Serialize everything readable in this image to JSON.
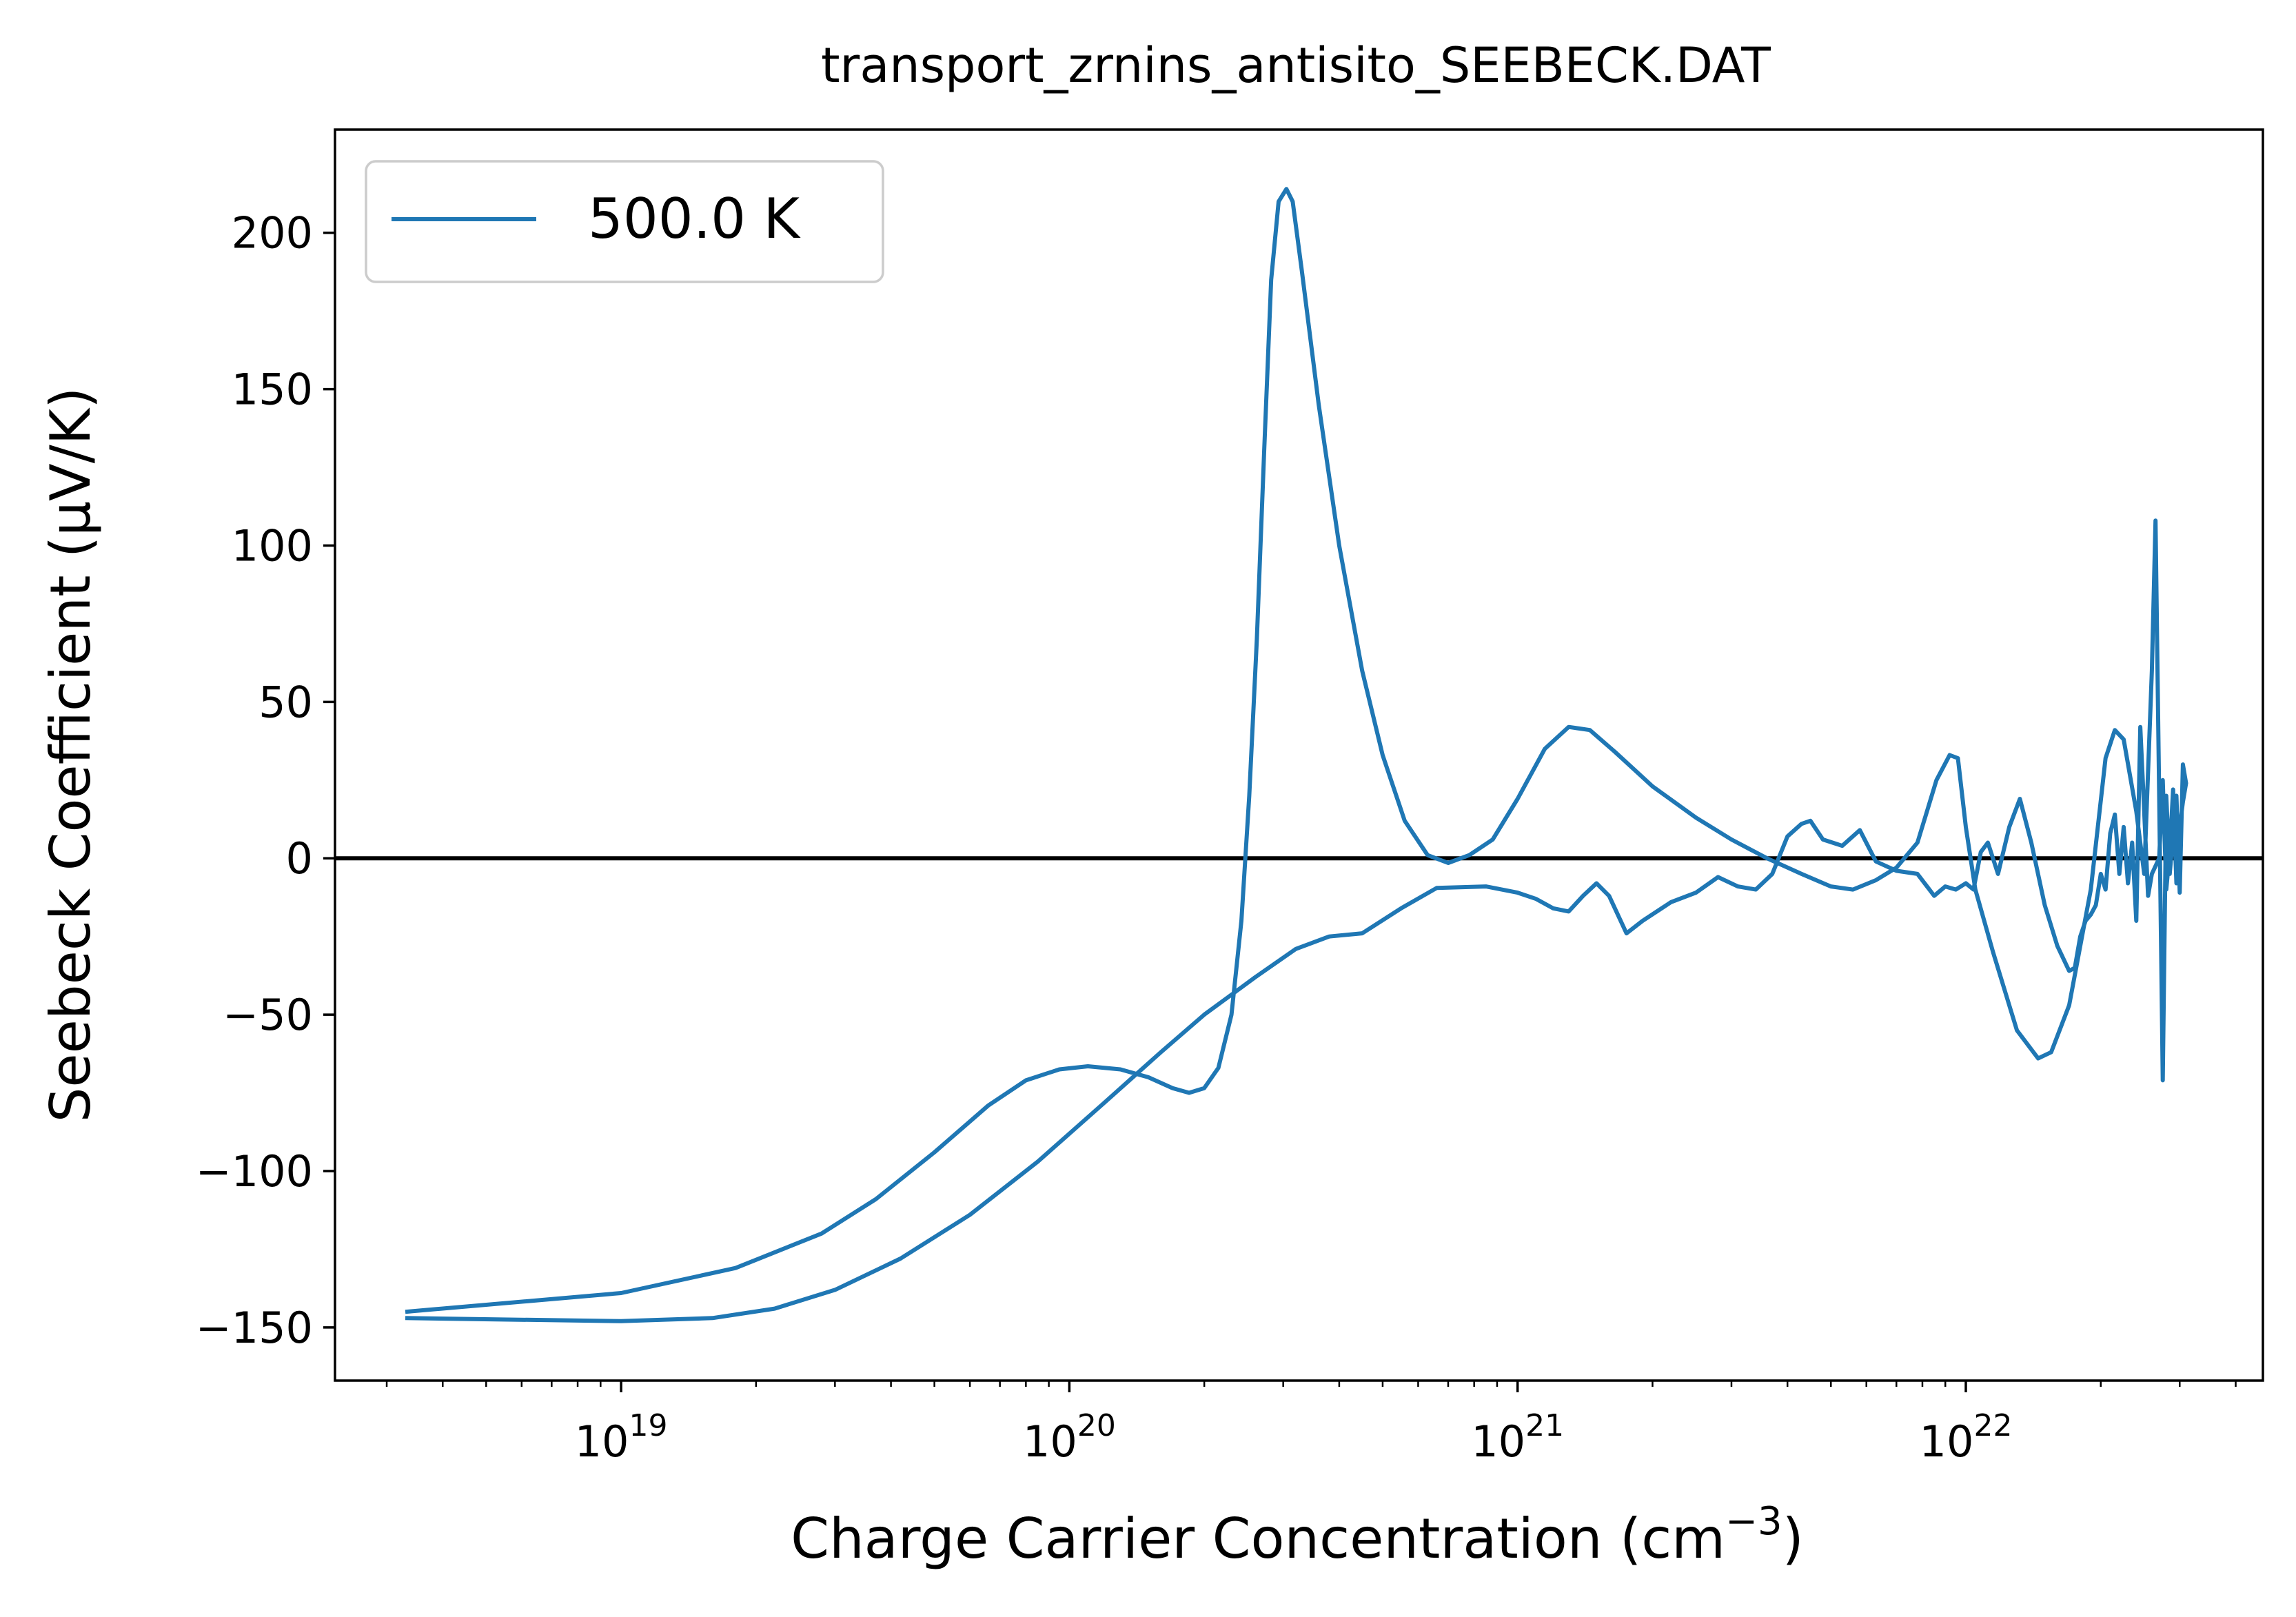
{
  "chart_data": {
    "type": "line",
    "title": "transport_zrnins_antisito_SEEBECK.DAT",
    "xlabel": "Charge Carrier Concentration (cm",
    "xlabel_sup": "−3",
    "xlabel_tail": ")",
    "ylabel": "Seebeck Coefficient (μV/K)",
    "x_scale": "log",
    "xlim": [
      2.3e+18,
      4.6e+22
    ],
    "ylim": [
      -167,
      233
    ],
    "grid": false,
    "legend_position": "upper-left",
    "x_tick_labels": [
      {
        "base": "10",
        "exp": "19",
        "value": 1e+19
      },
      {
        "base": "10",
        "exp": "20",
        "value": 1e+20
      },
      {
        "base": "10",
        "exp": "21",
        "value": 1e+21
      },
      {
        "base": "10",
        "exp": "22",
        "value": 1e+22
      }
    ],
    "y_ticks": [
      -150,
      -100,
      -50,
      0,
      50,
      100,
      150,
      200
    ],
    "y_tick_labels": [
      "−150",
      "−100",
      "−50",
      "0",
      "50",
      "100",
      "150",
      "200"
    ],
    "zero_line": 0,
    "series": [
      {
        "name": "500.0 K",
        "color": "#1f77b4",
        "points": [
          [
            3.3e+18,
            -145
          ],
          [
            1e+19,
            -139
          ],
          [
            1.8e+19,
            -131
          ],
          [
            2.8e+19,
            -120
          ],
          [
            3.7e+19,
            -109
          ],
          [
            5e+19,
            -94
          ],
          [
            6.6e+19,
            -79
          ],
          [
            8e+19,
            -71
          ],
          [
            9.5e+19,
            -67.5
          ],
          [
            1.1e+20,
            -66.5
          ],
          [
            1.3e+20,
            -67.5
          ],
          [
            1.5e+20,
            -70
          ],
          [
            1.7e+20,
            -73.5
          ],
          [
            1.85e+20,
            -75
          ],
          [
            2e+20,
            -73.5
          ],
          [
            2.15e+20,
            -67
          ],
          [
            2.3e+20,
            -50
          ],
          [
            2.42e+20,
            -20
          ],
          [
            2.52e+20,
            20
          ],
          [
            2.62e+20,
            70
          ],
          [
            2.72e+20,
            130
          ],
          [
            2.82e+20,
            185
          ],
          [
            2.93e+20,
            210
          ],
          [
            3.05e+20,
            214
          ],
          [
            3.15e+20,
            210
          ],
          [
            3.3e+20,
            188
          ],
          [
            3.6e+20,
            145
          ],
          [
            4e+20,
            100
          ],
          [
            4.5e+20,
            60
          ],
          [
            5e+20,
            33
          ],
          [
            5.6e+20,
            12
          ],
          [
            6.3e+20,
            1
          ],
          [
            7e+20,
            -1.5
          ],
          [
            7.8e+20,
            1
          ],
          [
            8.8e+20,
            6
          ],
          [
            1e+21,
            19
          ],
          [
            1.15e+21,
            35
          ],
          [
            1.3e+21,
            42
          ],
          [
            1.45e+21,
            41
          ],
          [
            1.65e+21,
            34
          ],
          [
            2e+21,
            23
          ],
          [
            2.5e+21,
            13
          ],
          [
            3e+21,
            6
          ],
          [
            3.6e+21,
            0
          ],
          [
            4.3e+21,
            -5
          ],
          [
            5e+21,
            -9
          ],
          [
            5.6e+21,
            -10
          ],
          [
            6.3e+21,
            -7
          ],
          [
            7e+21,
            -3
          ],
          [
            7.8e+21,
            5
          ],
          [
            8.6e+21,
            25
          ],
          [
            9.2e+21,
            33
          ],
          [
            9.6e+21,
            32
          ],
          [
            1e+22,
            10
          ],
          [
            1.05e+22,
            -10
          ],
          [
            1.15e+22,
            -30
          ],
          [
            1.3e+22,
            -55
          ],
          [
            1.45e+22,
            -64
          ],
          [
            1.55e+22,
            -62
          ],
          [
            1.7e+22,
            -47
          ],
          [
            1.9e+22,
            -10
          ],
          [
            2.05e+22,
            32
          ],
          [
            2.15e+22,
            41
          ],
          [
            2.25e+22,
            38
          ],
          [
            2.4e+22,
            15
          ],
          [
            2.5e+22,
            -5
          ],
          [
            2.6e+22,
            60
          ],
          [
            2.65e+22,
            108
          ],
          [
            2.7e+22,
            20
          ],
          [
            2.75e+22,
            -71
          ],
          [
            2.8e+22,
            20
          ],
          [
            2.85e+22,
            -5
          ],
          [
            2.95e+22,
            20
          ],
          [
            3e+22,
            -11
          ],
          [
            3.05e+22,
            30
          ],
          [
            3.1e+22,
            24
          ],
          [
            3.05e+22,
            18
          ],
          [
            3e+22,
            10
          ],
          [
            2.95e+22,
            -8
          ],
          [
            2.9e+22,
            22
          ],
          [
            2.85e+22,
            2
          ],
          [
            2.8e+22,
            -10
          ],
          [
            2.75e+22,
            25
          ],
          [
            2.7e+22,
            0
          ],
          [
            2.6e+22,
            -5
          ],
          [
            2.55e+22,
            -12
          ],
          [
            2.45e+22,
            42
          ],
          [
            2.4e+22,
            -20
          ],
          [
            2.35e+22,
            5
          ],
          [
            2.3e+22,
            -8
          ],
          [
            2.25e+22,
            10
          ],
          [
            2.2e+22,
            -5
          ],
          [
            2.15e+22,
            14
          ],
          [
            2.1e+22,
            8
          ],
          [
            2.05e+22,
            -10
          ],
          [
            2e+22,
            -5
          ],
          [
            1.95e+22,
            -15
          ],
          [
            1.9e+22,
            -18
          ],
          [
            1.85e+22,
            -20
          ],
          [
            1.8e+22,
            -25
          ],
          [
            1.75e+22,
            -35
          ],
          [
            1.7e+22,
            -36
          ],
          [
            1.6e+22,
            -28
          ],
          [
            1.5e+22,
            -15
          ],
          [
            1.4e+22,
            5
          ],
          [
            1.32e+22,
            19
          ],
          [
            1.25e+22,
            10
          ],
          [
            1.18e+22,
            -5
          ],
          [
            1.12e+22,
            5
          ],
          [
            1.08e+22,
            2
          ],
          [
            1.04e+22,
            -10
          ],
          [
            1e+22,
            -8
          ],
          [
            9.5e+21,
            -10
          ],
          [
            9e+21,
            -9
          ],
          [
            8.5e+21,
            -12
          ],
          [
            7.8e+21,
            -5
          ],
          [
            7e+21,
            -4
          ],
          [
            6.3e+21,
            -1
          ],
          [
            5.8e+21,
            9
          ],
          [
            5.3e+21,
            4
          ],
          [
            4.8e+21,
            6
          ],
          [
            4.5e+21,
            12
          ],
          [
            4.3e+21,
            11
          ],
          [
            4e+21,
            7
          ],
          [
            3.7e+21,
            -5
          ],
          [
            3.4e+21,
            -10
          ],
          [
            3.1e+21,
            -9
          ],
          [
            2.8e+21,
            -6
          ],
          [
            2.5e+21,
            -11
          ],
          [
            2.2e+21,
            -14
          ],
          [
            1.9e+21,
            -20
          ],
          [
            1.75e+21,
            -24
          ],
          [
            1.6e+21,
            -12
          ],
          [
            1.5e+21,
            -8
          ],
          [
            1.4e+21,
            -12
          ],
          [
            1.3e+21,
            -17
          ],
          [
            1.2e+21,
            -16
          ],
          [
            1.1e+21,
            -13
          ],
          [
            1e+21,
            -11
          ],
          [
            8.5e+20,
            -9
          ],
          [
            6.6e+20,
            -9.5
          ],
          [
            5.5e+20,
            -16
          ],
          [
            4.5e+20,
            -24
          ],
          [
            3.8e+20,
            -25
          ],
          [
            3.2e+20,
            -29
          ],
          [
            2.6e+20,
            -38
          ],
          [
            2e+20,
            -50
          ],
          [
            1.6e+20,
            -62
          ],
          [
            1.2e+20,
            -78
          ],
          [
            8.5e+19,
            -97
          ],
          [
            6e+19,
            -114
          ],
          [
            4.2e+19,
            -128
          ],
          [
            3e+19,
            -138
          ],
          [
            2.2e+19,
            -144
          ],
          [
            1.6e+19,
            -147
          ],
          [
            1e+19,
            -148
          ],
          [
            3.3e+18,
            -147
          ]
        ]
      }
    ]
  }
}
